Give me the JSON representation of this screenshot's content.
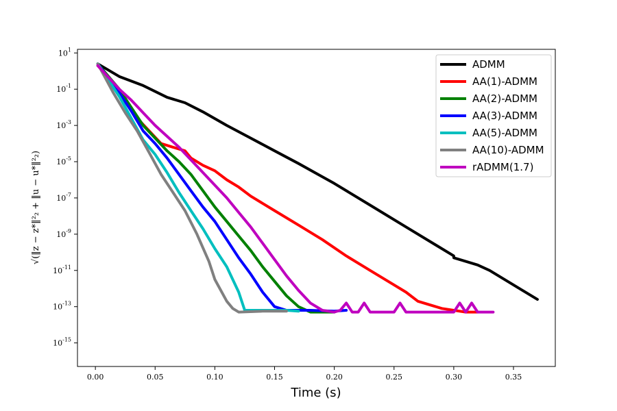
{
  "chart_data": {
    "type": "line",
    "title": "",
    "xlabel": "Time (s)",
    "ylabel": "√(‖z − z*‖²₂ + ‖u − u*‖²₂)",
    "xlim": [
      -0.015,
      0.385
    ],
    "ylim_log10": [
      -16.3,
      1.2
    ],
    "y_scale": "log",
    "x_ticks": [
      0.0,
      0.05,
      0.1,
      0.15,
      0.2,
      0.25,
      0.3,
      0.35
    ],
    "x_tick_labels": [
      "0.00",
      "0.05",
      "0.10",
      "0.15",
      "0.20",
      "0.25",
      "0.30",
      "0.35"
    ],
    "y_ticks_log10": [
      1,
      -1,
      -3,
      -5,
      -7,
      -9,
      -11,
      -13,
      -15
    ],
    "y_tick_labels": [
      "10^1",
      "10^-1",
      "10^-3",
      "10^-5",
      "10^-7",
      "10^-9",
      "10^-11",
      "10^-13",
      "10^-15"
    ],
    "grid": false,
    "legend_position": "top-right",
    "series": [
      {
        "name": "ADMM",
        "color": "#000000",
        "points": [
          [
            0.002,
            0.4
          ],
          [
            0.02,
            -0.3
          ],
          [
            0.04,
            -0.8
          ],
          [
            0.06,
            -1.45
          ],
          [
            0.075,
            -1.75
          ],
          [
            0.09,
            -2.25
          ],
          [
            0.11,
            -3.0
          ],
          [
            0.13,
            -3.7
          ],
          [
            0.15,
            -4.4
          ],
          [
            0.17,
            -5.1
          ],
          [
            0.2,
            -6.2
          ],
          [
            0.23,
            -7.4
          ],
          [
            0.26,
            -8.6
          ],
          [
            0.3,
            -10.2
          ],
          [
            0.3,
            -10.3
          ],
          [
            0.32,
            -10.7
          ],
          [
            0.33,
            -11.0
          ],
          [
            0.37,
            -12.6
          ]
        ]
      },
      {
        "name": "AA(1)-ADMM",
        "color": "#ff0000",
        "points": [
          [
            0.002,
            0.3
          ],
          [
            0.02,
            -1.0
          ],
          [
            0.035,
            -2.6
          ],
          [
            0.045,
            -3.3
          ],
          [
            0.055,
            -4.0
          ],
          [
            0.065,
            -4.2
          ],
          [
            0.075,
            -4.4
          ],
          [
            0.08,
            -4.8
          ],
          [
            0.09,
            -5.2
          ],
          [
            0.1,
            -5.5
          ],
          [
            0.11,
            -6.0
          ],
          [
            0.12,
            -6.4
          ],
          [
            0.13,
            -6.9
          ],
          [
            0.14,
            -7.3
          ],
          [
            0.15,
            -7.7
          ],
          [
            0.17,
            -8.5
          ],
          [
            0.19,
            -9.3
          ],
          [
            0.21,
            -10.2
          ],
          [
            0.23,
            -11.0
          ],
          [
            0.25,
            -11.8
          ],
          [
            0.26,
            -12.2
          ],
          [
            0.27,
            -12.7
          ],
          [
            0.29,
            -13.1
          ],
          [
            0.31,
            -13.3
          ],
          [
            0.32,
            -13.3
          ]
        ]
      },
      {
        "name": "AA(2)-ADMM",
        "color": "#008000",
        "points": [
          [
            0.002,
            0.4
          ],
          [
            0.02,
            -1.0
          ],
          [
            0.03,
            -2.0
          ],
          [
            0.04,
            -3.0
          ],
          [
            0.05,
            -3.7
          ],
          [
            0.06,
            -4.4
          ],
          [
            0.07,
            -5.0
          ],
          [
            0.08,
            -5.7
          ],
          [
            0.09,
            -6.6
          ],
          [
            0.1,
            -7.5
          ],
          [
            0.11,
            -8.3
          ],
          [
            0.12,
            -9.1
          ],
          [
            0.13,
            -9.9
          ],
          [
            0.14,
            -10.8
          ],
          [
            0.15,
            -11.6
          ],
          [
            0.16,
            -12.4
          ],
          [
            0.17,
            -13.0
          ],
          [
            0.18,
            -13.3
          ],
          [
            0.19,
            -13.3
          ],
          [
            0.2,
            -13.3
          ]
        ]
      },
      {
        "name": "AA(3)-ADMM",
        "color": "#0000ff",
        "points": [
          [
            0.002,
            0.4
          ],
          [
            0.02,
            -1.2
          ],
          [
            0.03,
            -2.2
          ],
          [
            0.04,
            -3.3
          ],
          [
            0.05,
            -4.0
          ],
          [
            0.06,
            -4.8
          ],
          [
            0.07,
            -5.7
          ],
          [
            0.08,
            -6.6
          ],
          [
            0.09,
            -7.5
          ],
          [
            0.1,
            -8.3
          ],
          [
            0.11,
            -9.3
          ],
          [
            0.12,
            -10.3
          ],
          [
            0.13,
            -11.2
          ],
          [
            0.14,
            -12.2
          ],
          [
            0.15,
            -13.0
          ],
          [
            0.16,
            -13.2
          ],
          [
            0.18,
            -13.2
          ],
          [
            0.2,
            -13.25
          ],
          [
            0.21,
            -13.2
          ]
        ]
      },
      {
        "name": "AA(5)-ADMM",
        "color": "#00bfbf",
        "points": [
          [
            0.002,
            0.4
          ],
          [
            0.02,
            -1.4
          ],
          [
            0.03,
            -2.6
          ],
          [
            0.04,
            -3.8
          ],
          [
            0.05,
            -4.6
          ],
          [
            0.06,
            -5.6
          ],
          [
            0.07,
            -6.7
          ],
          [
            0.08,
            -7.7
          ],
          [
            0.09,
            -8.7
          ],
          [
            0.1,
            -9.8
          ],
          [
            0.11,
            -10.8
          ],
          [
            0.12,
            -12.2
          ],
          [
            0.125,
            -13.2
          ],
          [
            0.14,
            -13.2
          ],
          [
            0.16,
            -13.2
          ],
          [
            0.17,
            -13.25
          ]
        ]
      },
      {
        "name": "AA(10)-ADMM",
        "color": "#808080",
        "points": [
          [
            0.002,
            0.4
          ],
          [
            0.015,
            -1.2
          ],
          [
            0.025,
            -2.3
          ],
          [
            0.035,
            -3.3
          ],
          [
            0.045,
            -4.5
          ],
          [
            0.055,
            -5.7
          ],
          [
            0.065,
            -6.7
          ],
          [
            0.075,
            -7.7
          ],
          [
            0.085,
            -9.0
          ],
          [
            0.095,
            -10.5
          ],
          [
            0.1,
            -11.5
          ],
          [
            0.11,
            -12.7
          ],
          [
            0.115,
            -13.1
          ],
          [
            0.12,
            -13.3
          ],
          [
            0.14,
            -13.25
          ],
          [
            0.16,
            -13.25
          ]
        ]
      },
      {
        "name": "rADMM(1.7)",
        "color": "#bf00bf",
        "points": [
          [
            0.002,
            0.3
          ],
          [
            0.02,
            -1.0
          ],
          [
            0.03,
            -1.6
          ],
          [
            0.04,
            -2.3
          ],
          [
            0.05,
            -3.0
          ],
          [
            0.06,
            -3.6
          ],
          [
            0.07,
            -4.2
          ],
          [
            0.08,
            -4.9
          ],
          [
            0.09,
            -5.6
          ],
          [
            0.1,
            -6.3
          ],
          [
            0.11,
            -7.0
          ],
          [
            0.12,
            -7.8
          ],
          [
            0.13,
            -8.6
          ],
          [
            0.14,
            -9.5
          ],
          [
            0.15,
            -10.4
          ],
          [
            0.16,
            -11.3
          ],
          [
            0.17,
            -12.1
          ],
          [
            0.18,
            -12.8
          ],
          [
            0.19,
            -13.2
          ],
          [
            0.2,
            -13.3
          ],
          [
            0.205,
            -13.2
          ],
          [
            0.21,
            -12.8
          ],
          [
            0.215,
            -13.3
          ],
          [
            0.22,
            -13.3
          ],
          [
            0.225,
            -12.8
          ],
          [
            0.23,
            -13.3
          ],
          [
            0.25,
            -13.3
          ],
          [
            0.255,
            -12.8
          ],
          [
            0.26,
            -13.3
          ],
          [
            0.3,
            -13.3
          ],
          [
            0.305,
            -12.8
          ],
          [
            0.31,
            -13.3
          ],
          [
            0.315,
            -12.8
          ],
          [
            0.32,
            -13.3
          ],
          [
            0.333,
            -13.3
          ]
        ]
      }
    ]
  }
}
